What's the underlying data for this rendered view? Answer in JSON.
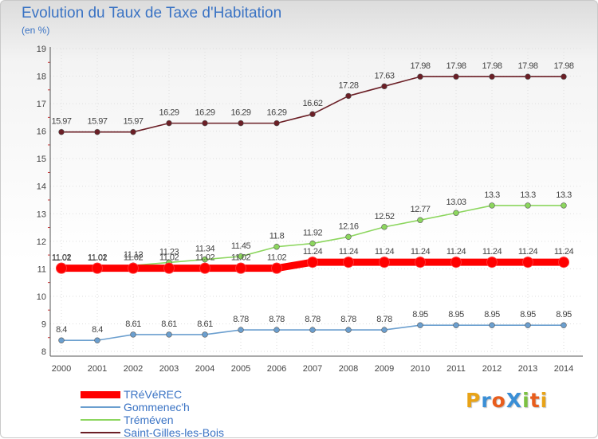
{
  "title": "Evolution du Taux de Taxe d'Habitation",
  "unit": "(en %)",
  "brand": {
    "text": "ProXiti",
    "letters": [
      {
        "char": "P",
        "color": "#e8a317"
      },
      {
        "char": "r",
        "color": "#3a8fd6"
      },
      {
        "char": "o",
        "color": "#e85d1c"
      },
      {
        "char": "X",
        "color": "#3a8fd6"
      },
      {
        "char": "i",
        "color": "#7cc142"
      },
      {
        "char": "t",
        "color": "#e85d1c"
      },
      {
        "char": "i",
        "color": "#e8a317"
      }
    ]
  },
  "chart_data": {
    "type": "line",
    "categories": [
      "2000",
      "2001",
      "2002",
      "2003",
      "2004",
      "2005",
      "2006",
      "2007",
      "2008",
      "2009",
      "2010",
      "2011",
      "2012",
      "2013",
      "2014"
    ],
    "ylim": [
      8,
      19
    ],
    "yticks": [
      8,
      9,
      10,
      11,
      12,
      13,
      14,
      15,
      16,
      17,
      18,
      19
    ],
    "grid": true,
    "legend_position": "bottom-left",
    "series": [
      {
        "name": "Saint-Gilles-les-Bois",
        "color": "#6b1f26",
        "values": [
          15.97,
          15.97,
          15.97,
          16.29,
          16.29,
          16.29,
          16.29,
          16.62,
          17.28,
          17.63,
          17.98,
          17.98,
          17.98,
          17.98,
          17.98
        ],
        "labels": [
          "15.97",
          "15.97",
          "15.97",
          "16.29",
          "16.29",
          "16.29",
          "16.29",
          "16.62",
          "17.28",
          "17.63",
          "17.98",
          "17.98",
          "17.98",
          "17.98",
          "17.98"
        ]
      },
      {
        "name": "Tréméven",
        "color": "#8cd65e",
        "values": [
          11.01,
          11.01,
          11.12,
          11.23,
          11.34,
          11.45,
          11.8,
          11.92,
          12.16,
          12.52,
          12.77,
          13.03,
          13.3,
          13.3,
          13.3
        ],
        "labels": [
          "11.01",
          "11.01",
          "11.12",
          "11.23",
          "11.34",
          "11.45",
          "11.8",
          "11.92",
          "12.16",
          "12.52",
          "12.77",
          "13.03",
          "13.3",
          "13.3",
          "13.3"
        ]
      },
      {
        "name": "TRéVéREC",
        "color": "#ff0000",
        "values": [
          11.02,
          11.02,
          11.02,
          11.02,
          11.02,
          11.02,
          11.02,
          11.24,
          11.24,
          11.24,
          11.24,
          11.24,
          11.24,
          11.24,
          11.24
        ],
        "labels": [
          "11.02",
          "11.02",
          "11.02",
          "11.02",
          "11.02",
          "11.02",
          "11.02",
          "11.24",
          "11.24",
          "11.24",
          "11.24",
          "11.24",
          "11.24",
          "11.24",
          "11.24"
        ]
      },
      {
        "name": "Gommenec'h",
        "color": "#6b9fcf",
        "values": [
          8.4,
          8.4,
          8.61,
          8.61,
          8.61,
          8.78,
          8.78,
          8.78,
          8.78,
          8.78,
          8.95,
          8.95,
          8.95,
          8.95,
          8.95
        ],
        "labels": [
          "8.4",
          "8.4",
          "8.61",
          "8.61",
          "8.61",
          "8.78",
          "8.78",
          "8.78",
          "8.78",
          "8.78",
          "8.95",
          "8.95",
          "8.95",
          "8.95",
          "8.95"
        ]
      }
    ],
    "legend": [
      "TRéVéREC",
      "Gommenec'h",
      "Tréméven",
      "Saint-Gilles-les-Bois"
    ]
  }
}
